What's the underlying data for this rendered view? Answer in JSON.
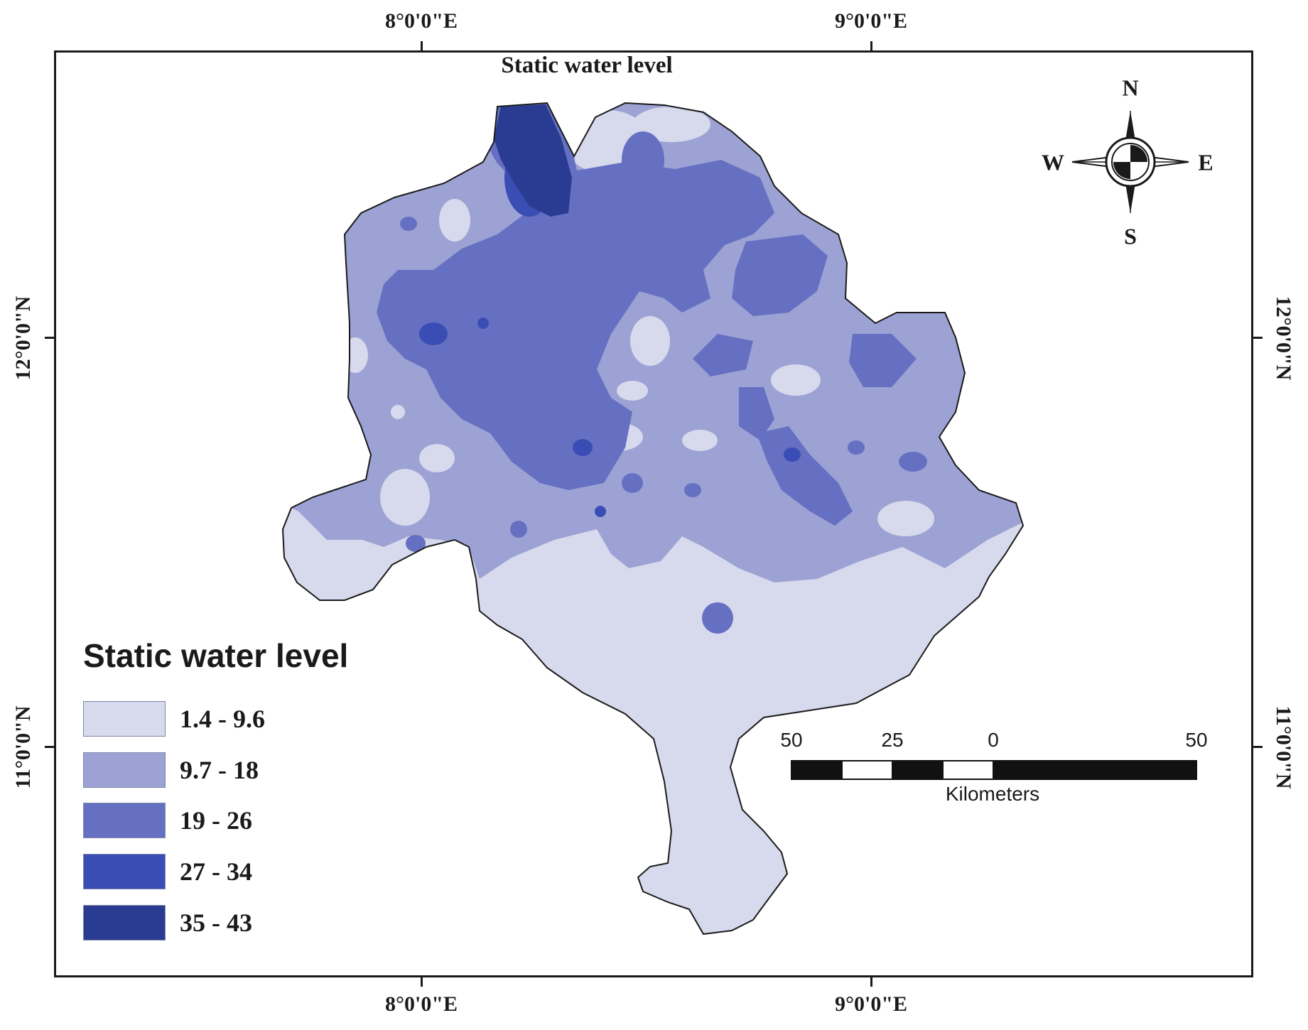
{
  "map": {
    "title": "Static water level"
  },
  "graticule": {
    "longitude_labels": [
      "8°0'0\"E",
      "9°0'0\"E"
    ],
    "latitude_labels": [
      "12°0'0\"N",
      "11°0'0\"N"
    ]
  },
  "legend": {
    "title": "Static water level",
    "classes": [
      {
        "label": "1.4 - 9.6",
        "color": "#d7d9ec"
      },
      {
        "label": "9.7 - 18",
        "color": "#9ca2d3"
      },
      {
        "label": "19 - 26",
        "color": "#6670c2"
      },
      {
        "label": "27 - 34",
        "color": "#3a4db4"
      },
      {
        "label": "35 - 43",
        "color": "#2a3c92"
      }
    ]
  },
  "north_arrow": {
    "n": "N",
    "s": "S",
    "e": "E",
    "w": "W"
  },
  "scale_bar": {
    "ticks": [
      "50",
      "25",
      "0",
      "50"
    ],
    "unit": "Kilometers"
  }
}
